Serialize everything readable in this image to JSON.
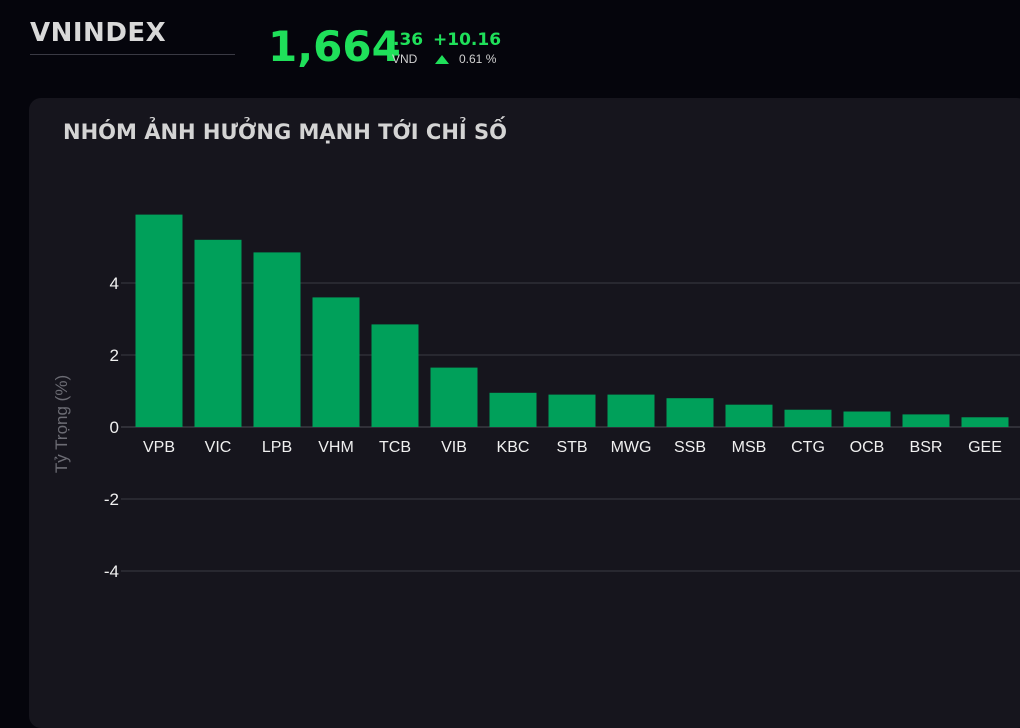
{
  "header": {
    "index_name": "VNINDEX",
    "price_integer": "1,664",
    "price_decimal": ".36",
    "currency": "VND",
    "change_abs": "+10.16",
    "change_pct": "0.61 %",
    "accent_color": "#1fe05a"
  },
  "panel": {
    "title": "NHÓM ẢNH HƯỞNG MẠNH TỚI CHỈ SỐ"
  },
  "chart_data": {
    "type": "bar",
    "title": "NHÓM ẢNH HƯỞNG MẠNH TỚI CHỈ SỐ",
    "xlabel": "",
    "ylabel": "Tỷ Trọng (%)",
    "categories": [
      "VPB",
      "VIC",
      "LPB",
      "VHM",
      "TCB",
      "VIB",
      "KBC",
      "STB",
      "MWG",
      "SSB",
      "MSB",
      "CTG",
      "OCB",
      "BSR",
      "GEE"
    ],
    "values": [
      5.9,
      5.2,
      4.85,
      3.6,
      2.85,
      1.65,
      0.95,
      0.9,
      0.9,
      0.8,
      0.62,
      0.48,
      0.43,
      0.35,
      0.27
    ],
    "yticks": [
      4,
      2,
      0,
      -2,
      -4
    ],
    "ytick_labels": [
      "4",
      "2",
      "0",
      "-2",
      "-4"
    ],
    "ylim": [
      -4.5,
      6.6
    ],
    "grid": true,
    "bar_color": "#00a05a"
  }
}
